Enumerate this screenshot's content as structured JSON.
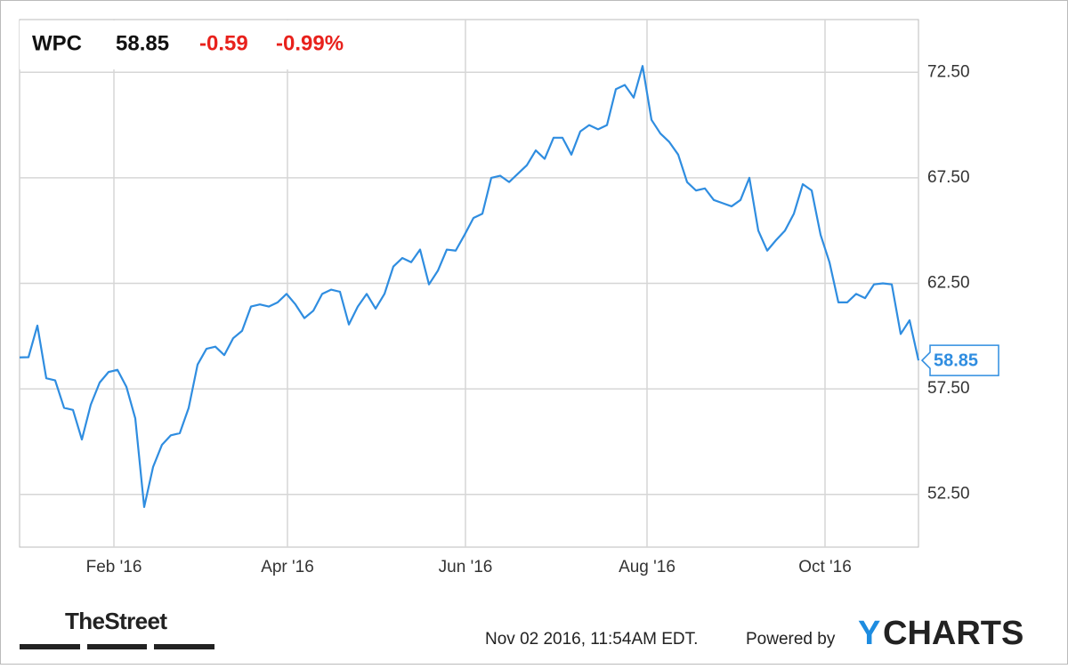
{
  "header": {
    "symbol": "WPC",
    "change": "-0.59",
    "change_pct": "-0.99%"
  },
  "footer": {
    "timestamp": "Nov 02 2016, 11:54AM EDT.",
    "powered_by": "Powered by",
    "brand_y": "Y",
    "brand_rest": "CHARTS",
    "source": "TheStreet"
  },
  "chart_data": {
    "type": "line",
    "series": [
      {
        "name": "WPC",
        "color": "#2f8de0",
        "values": [
          58.99,
          59.0,
          60.5,
          58.0,
          57.9,
          56.6,
          56.5,
          55.1,
          56.75,
          57.8,
          58.3,
          58.4,
          57.6,
          56.1,
          51.9,
          53.8,
          54.85,
          55.3,
          55.4,
          56.6,
          58.65,
          59.4,
          59.5,
          59.1,
          59.9,
          60.25,
          61.4,
          61.5,
          61.4,
          61.6,
          62.0,
          61.5,
          60.85,
          61.2,
          62.0,
          62.2,
          62.1,
          60.55,
          61.4,
          62.0,
          61.3,
          62.0,
          63.3,
          63.7,
          63.5,
          64.1,
          62.45,
          63.1,
          64.1,
          64.05,
          64.8,
          65.6,
          65.8,
          67.5,
          67.6,
          67.3,
          67.7,
          68.1,
          68.8,
          68.4,
          69.4,
          69.4,
          68.6,
          69.7,
          70.0,
          69.8,
          70.0,
          71.7,
          71.9,
          71.3,
          72.8,
          70.25,
          69.6,
          69.2,
          68.6,
          67.3,
          66.9,
          67.0,
          66.45,
          66.3,
          66.15,
          66.45,
          67.5,
          65.0,
          64.05,
          64.55,
          65.0,
          65.8,
          67.2,
          66.9,
          64.8,
          63.5,
          61.6,
          61.6,
          62.0,
          61.8,
          62.45,
          62.5,
          62.45,
          60.1,
          60.75,
          58.85
        ]
      }
    ],
    "xlim": [
      0,
      101
    ],
    "xticks": [
      {
        "value": 10.6,
        "label": "Feb '16"
      },
      {
        "value": 30.1,
        "label": "Apr '16"
      },
      {
        "value": 50.1,
        "label": "Jun '16"
      },
      {
        "value": 70.5,
        "label": "Aug '16"
      },
      {
        "value": 90.5,
        "label": "Oct '16"
      }
    ],
    "ylim": [
      50,
      75
    ],
    "yticks": [
      {
        "value": 52.5,
        "label": "52.50"
      },
      {
        "value": 57.5,
        "label": "57.50"
      },
      {
        "value": 62.5,
        "label": "62.50"
      },
      {
        "value": 67.5,
        "label": "67.50"
      },
      {
        "value": 72.5,
        "label": "72.50"
      }
    ],
    "grid": true
  }
}
